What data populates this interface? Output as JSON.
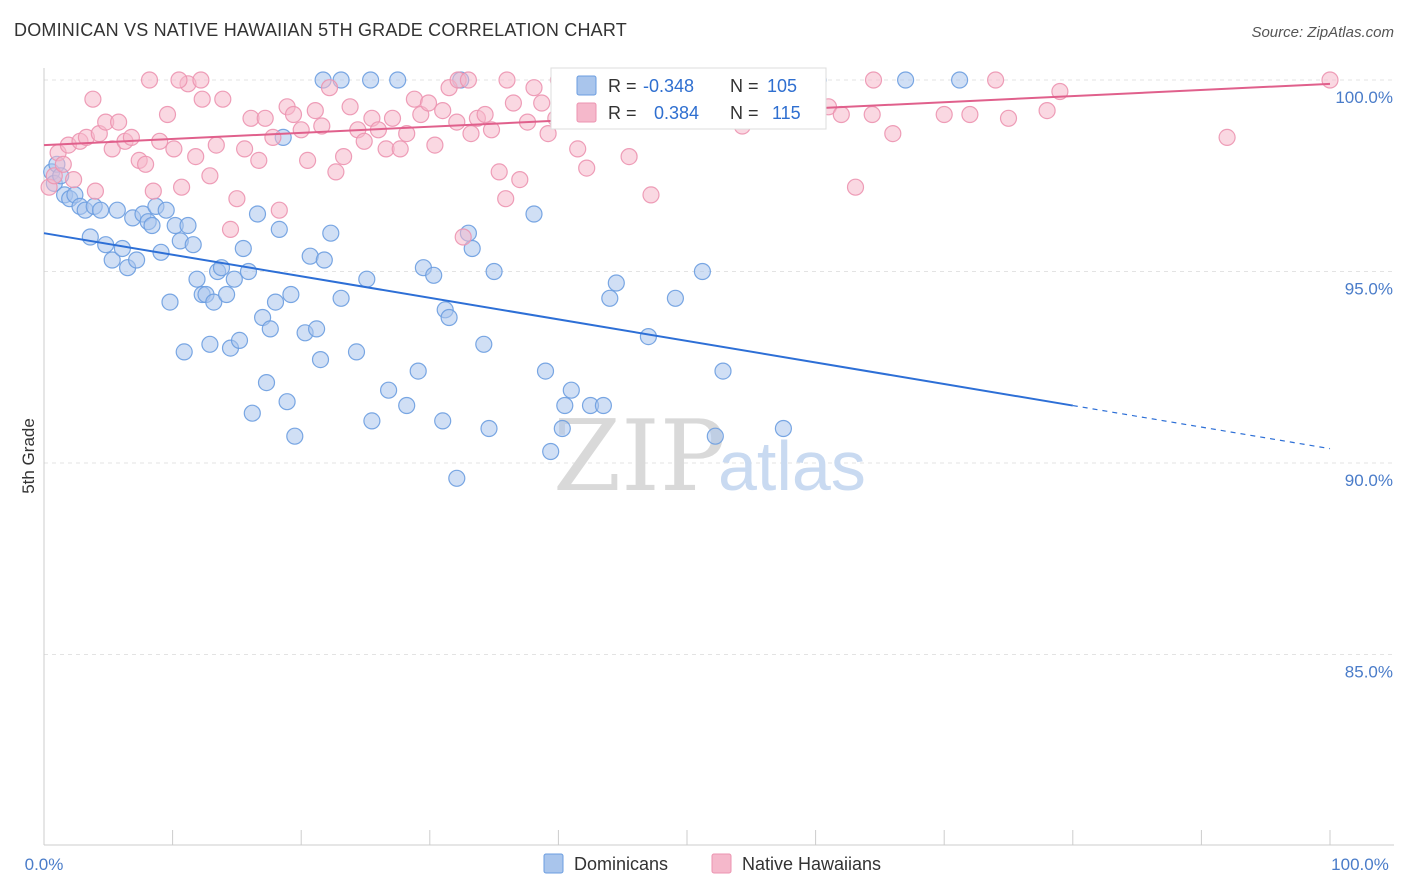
{
  "header": {
    "title": "DOMINICAN VS NATIVE HAWAIIAN 5TH GRADE CORRELATION CHART",
    "source": "Source: ZipAtlas.com"
  },
  "watermark": {
    "zip": "ZIP",
    "atlas": "atlas"
  },
  "legend": {
    "r_label": "R =",
    "n_label": "N =",
    "rows": [
      {
        "r": "-0.348",
        "n": "105"
      },
      {
        "r": "0.384",
        "n": "115"
      }
    ]
  },
  "bottom_legend": [
    {
      "label": "Dominicans"
    },
    {
      "label": "Native Hawaiians"
    }
  ],
  "colors": {
    "blue_fill": "#a9c5ec",
    "blue_stroke": "#6b9de0",
    "blue_line": "#2d6fd6",
    "pink_fill": "#f5b8cb",
    "pink_stroke": "#ec93b0",
    "pink_line": "#e0608c"
  },
  "chart_data": {
    "type": "scatter",
    "title": "DOMINICAN VS NATIVE HAWAIIAN 5TH GRADE CORRELATION CHART",
    "xlabel": "",
    "ylabel": "5th Grade",
    "xlim": [
      0,
      100
    ],
    "ylim": [
      80,
      100.8
    ],
    "x_tick_labels": [
      "0.0%",
      "100.0%"
    ],
    "y_ticks": [
      {
        "value": 100,
        "label": "100.0%"
      },
      {
        "value": 95,
        "label": "95.0%"
      },
      {
        "value": 90,
        "label": "90.0%"
      },
      {
        "value": 85,
        "label": "85.0%"
      }
    ],
    "series": [
      {
        "name": "Dominicans",
        "r": -0.348,
        "n": 105,
        "trend": {
          "x0": 0,
          "y0": 96.0,
          "x1": 80,
          "y1": 91.5,
          "dash_to": 100
        },
        "points": [
          [
            0.6,
            97.6
          ],
          [
            0.8,
            97.3
          ],
          [
            1.0,
            97.8
          ],
          [
            1.3,
            97.5
          ],
          [
            1.6,
            97.0
          ],
          [
            2.0,
            96.9
          ],
          [
            2.4,
            97.0
          ],
          [
            2.8,
            96.7
          ],
          [
            3.2,
            96.6
          ],
          [
            3.6,
            95.9
          ],
          [
            3.9,
            96.7
          ],
          [
            4.4,
            96.6
          ],
          [
            4.8,
            95.7
          ],
          [
            5.3,
            95.3
          ],
          [
            5.7,
            96.6
          ],
          [
            6.1,
            95.6
          ],
          [
            6.5,
            95.1
          ],
          [
            6.9,
            96.4
          ],
          [
            7.2,
            95.3
          ],
          [
            7.7,
            96.5
          ],
          [
            8.1,
            96.3
          ],
          [
            8.4,
            96.2
          ],
          [
            8.7,
            96.7
          ],
          [
            9.1,
            95.5
          ],
          [
            9.5,
            96.6
          ],
          [
            9.8,
            94.2
          ],
          [
            10.2,
            96.2
          ],
          [
            10.6,
            95.8
          ],
          [
            10.9,
            92.9
          ],
          [
            11.2,
            96.2
          ],
          [
            11.6,
            95.7
          ],
          [
            11.9,
            94.8
          ],
          [
            12.3,
            94.4
          ],
          [
            12.6,
            94.4
          ],
          [
            12.9,
            93.1
          ],
          [
            13.2,
            94.2
          ],
          [
            13.5,
            95.0
          ],
          [
            13.8,
            95.1
          ],
          [
            14.2,
            94.4
          ],
          [
            14.5,
            93.0
          ],
          [
            14.8,
            94.8
          ],
          [
            15.2,
            93.2
          ],
          [
            15.5,
            95.6
          ],
          [
            15.9,
            95.0
          ],
          [
            16.2,
            91.3
          ],
          [
            16.6,
            96.5
          ],
          [
            17.0,
            93.8
          ],
          [
            17.3,
            92.1
          ],
          [
            17.6,
            93.5
          ],
          [
            18.0,
            94.2
          ],
          [
            18.3,
            96.1
          ],
          [
            18.6,
            98.5
          ],
          [
            18.9,
            91.6
          ],
          [
            19.2,
            94.4
          ],
          [
            19.5,
            90.7
          ],
          [
            20.3,
            93.4
          ],
          [
            20.7,
            95.4
          ],
          [
            21.2,
            93.5
          ],
          [
            21.5,
            92.7
          ],
          [
            21.8,
            95.3
          ],
          [
            22.3,
            96.0
          ],
          [
            23.1,
            94.3
          ],
          [
            24.3,
            92.9
          ],
          [
            25.1,
            94.8
          ],
          [
            25.5,
            91.1
          ],
          [
            26.8,
            91.9
          ],
          [
            28.2,
            91.5
          ],
          [
            29.1,
            92.4
          ],
          [
            29.5,
            95.1
          ],
          [
            30.3,
            94.9
          ],
          [
            31.0,
            91.1
          ],
          [
            31.2,
            94.0
          ],
          [
            31.5,
            93.8
          ],
          [
            32.1,
            89.6
          ],
          [
            33.0,
            96.0
          ],
          [
            33.3,
            95.6
          ],
          [
            34.2,
            93.1
          ],
          [
            34.6,
            90.9
          ],
          [
            35.0,
            95.0
          ],
          [
            38.1,
            96.5
          ],
          [
            39.0,
            92.4
          ],
          [
            39.4,
            90.3
          ],
          [
            40.3,
            90.9
          ],
          [
            40.5,
            91.5
          ],
          [
            41.0,
            91.9
          ],
          [
            42.5,
            91.5
          ],
          [
            43.5,
            91.5
          ],
          [
            44.0,
            94.3
          ],
          [
            44.5,
            94.7
          ],
          [
            47.0,
            93.3
          ],
          [
            49.1,
            94.3
          ],
          [
            51.2,
            95.0
          ],
          [
            52.2,
            90.7
          ],
          [
            52.8,
            92.4
          ],
          [
            57.5,
            90.9
          ],
          [
            21.7,
            100.0
          ],
          [
            23.1,
            100.0
          ],
          [
            25.4,
            100.0
          ],
          [
            27.5,
            100.0
          ],
          [
            32.4,
            100.0
          ],
          [
            60.2,
            100.0
          ],
          [
            67.0,
            100.0
          ],
          [
            71.2,
            100.0
          ]
        ]
      },
      {
        "name": "Native Hawaiians",
        "r": 0.384,
        "n": 115,
        "trend": {
          "x0": 0,
          "y0": 98.3,
          "x1": 100,
          "y1": 99.9
        },
        "points": [
          [
            0.4,
            97.2
          ],
          [
            0.8,
            97.5
          ],
          [
            1.1,
            98.1
          ],
          [
            1.5,
            97.8
          ],
          [
            1.9,
            98.3
          ],
          [
            2.3,
            97.4
          ],
          [
            2.8,
            98.4
          ],
          [
            3.3,
            98.5
          ],
          [
            3.8,
            99.5
          ],
          [
            4.3,
            98.6
          ],
          [
            4.8,
            98.9
          ],
          [
            5.3,
            98.2
          ],
          [
            5.8,
            98.9
          ],
          [
            6.3,
            98.4
          ],
          [
            6.8,
            98.5
          ],
          [
            7.4,
            97.9
          ],
          [
            7.9,
            97.8
          ],
          [
            8.5,
            97.1
          ],
          [
            9.0,
            98.4
          ],
          [
            9.6,
            99.1
          ],
          [
            10.1,
            98.2
          ],
          [
            10.7,
            97.2
          ],
          [
            11.2,
            99.9
          ],
          [
            11.8,
            98.0
          ],
          [
            12.3,
            99.5
          ],
          [
            12.9,
            97.5
          ],
          [
            13.4,
            98.3
          ],
          [
            13.9,
            99.5
          ],
          [
            14.5,
            96.1
          ],
          [
            15.0,
            96.9
          ],
          [
            15.6,
            98.2
          ],
          [
            16.1,
            99.0
          ],
          [
            16.7,
            97.9
          ],
          [
            17.2,
            99.0
          ],
          [
            17.8,
            98.5
          ],
          [
            18.3,
            96.6
          ],
          [
            18.9,
            99.3
          ],
          [
            19.4,
            99.1
          ],
          [
            20.0,
            98.7
          ],
          [
            20.5,
            97.9
          ],
          [
            21.1,
            99.2
          ],
          [
            21.6,
            98.8
          ],
          [
            22.2,
            99.8
          ],
          [
            22.7,
            97.6
          ],
          [
            23.3,
            98.0
          ],
          [
            23.8,
            99.3
          ],
          [
            24.4,
            98.7
          ],
          [
            24.9,
            98.4
          ],
          [
            25.5,
            99.0
          ],
          [
            26.0,
            98.7
          ],
          [
            26.6,
            98.2
          ],
          [
            27.1,
            99.0
          ],
          [
            27.7,
            98.2
          ],
          [
            28.2,
            98.6
          ],
          [
            28.8,
            99.5
          ],
          [
            29.3,
            99.1
          ],
          [
            29.9,
            99.4
          ],
          [
            30.4,
            98.3
          ],
          [
            31.0,
            99.2
          ],
          [
            31.5,
            99.8
          ],
          [
            32.1,
            98.9
          ],
          [
            32.6,
            95.9
          ],
          [
            33.2,
            98.6
          ],
          [
            33.7,
            99.0
          ],
          [
            34.3,
            99.1
          ],
          [
            34.8,
            98.7
          ],
          [
            35.4,
            97.6
          ],
          [
            35.9,
            96.9
          ],
          [
            36.5,
            99.4
          ],
          [
            37.0,
            97.4
          ],
          [
            37.6,
            98.9
          ],
          [
            38.1,
            99.8
          ],
          [
            38.7,
            99.4
          ],
          [
            39.2,
            98.6
          ],
          [
            39.8,
            99.0
          ],
          [
            40.5,
            99.5
          ],
          [
            41.5,
            98.2
          ],
          [
            42.2,
            97.7
          ],
          [
            43.0,
            99.3
          ],
          [
            45.5,
            98.0
          ],
          [
            46.5,
            99.9
          ],
          [
            47.2,
            97.0
          ],
          [
            49.0,
            99.6
          ],
          [
            50.6,
            99.6
          ],
          [
            52.1,
            99.0
          ],
          [
            53.3,
            99.7
          ],
          [
            54.3,
            98.8
          ],
          [
            55.2,
            99.3
          ],
          [
            58.0,
            99.0
          ],
          [
            60.1,
            99.4
          ],
          [
            61.0,
            99.3
          ],
          [
            62.0,
            99.1
          ],
          [
            63.1,
            97.2
          ],
          [
            64.4,
            99.1
          ],
          [
            66.0,
            98.6
          ],
          [
            70.0,
            99.1
          ],
          [
            72.0,
            99.1
          ],
          [
            75.0,
            99.0
          ],
          [
            78.0,
            99.2
          ],
          [
            79.0,
            99.7
          ],
          [
            92.0,
            98.5
          ],
          [
            8.2,
            100.0
          ],
          [
            10.5,
            100.0
          ],
          [
            12.2,
            100.0
          ],
          [
            32.2,
            100.0
          ],
          [
            33.0,
            100.0
          ],
          [
            36.0,
            100.0
          ],
          [
            40.0,
            100.0
          ],
          [
            44.0,
            100.0
          ],
          [
            45.0,
            100.0
          ],
          [
            48.0,
            100.0
          ],
          [
            52.0,
            100.0
          ],
          [
            56.0,
            100.0
          ],
          [
            64.5,
            100.0
          ],
          [
            74.0,
            100.0
          ],
          [
            100.0,
            100.0
          ],
          [
            4.0,
            97.1
          ]
        ]
      }
    ]
  }
}
